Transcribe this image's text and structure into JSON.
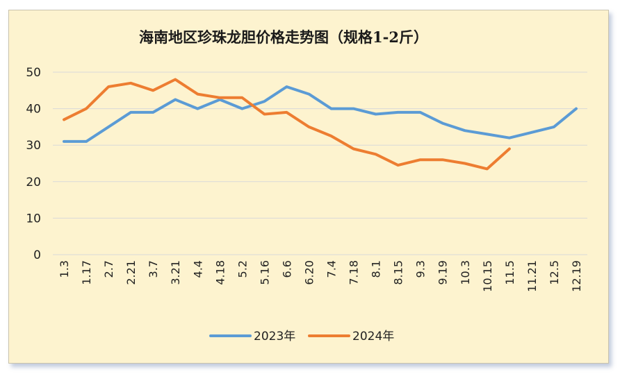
{
  "chart_data": {
    "type": "line",
    "title": "海南地区珍珠龙胆价格走势图（规格1-2斤）",
    "ylim": [
      0,
      50
    ],
    "yticks": [
      0,
      10,
      20,
      30,
      40,
      50
    ],
    "grid": true,
    "legend_position": "bottom",
    "categories": [
      "1.3",
      "1.17",
      "2.7",
      "2.21",
      "3.7",
      "3.21",
      "4.4",
      "4.18",
      "5.2",
      "5.16",
      "6.6",
      "6.20",
      "7.4",
      "7.18",
      "8.1",
      "8.15",
      "9.3",
      "9.19",
      "10.3",
      "10.15",
      "11.5",
      "11.21",
      "12.5",
      "12.19"
    ],
    "series": [
      {
        "name": "2023年",
        "color": "#5b9bd5",
        "values": [
          31,
          31,
          35,
          39,
          39,
          42.5,
          40,
          42.5,
          40,
          42,
          46,
          44,
          40,
          40,
          38.5,
          39,
          39,
          36,
          34,
          33,
          32,
          33.5,
          35,
          40
        ]
      },
      {
        "name": "2024年",
        "color": "#ed7d31",
        "values": [
          37,
          40,
          46,
          47,
          45,
          48,
          44,
          43,
          43,
          38.5,
          39,
          35,
          32.5,
          29,
          27.5,
          24.5,
          26,
          26,
          25,
          23.5,
          29,
          null,
          null,
          null
        ]
      }
    ]
  }
}
